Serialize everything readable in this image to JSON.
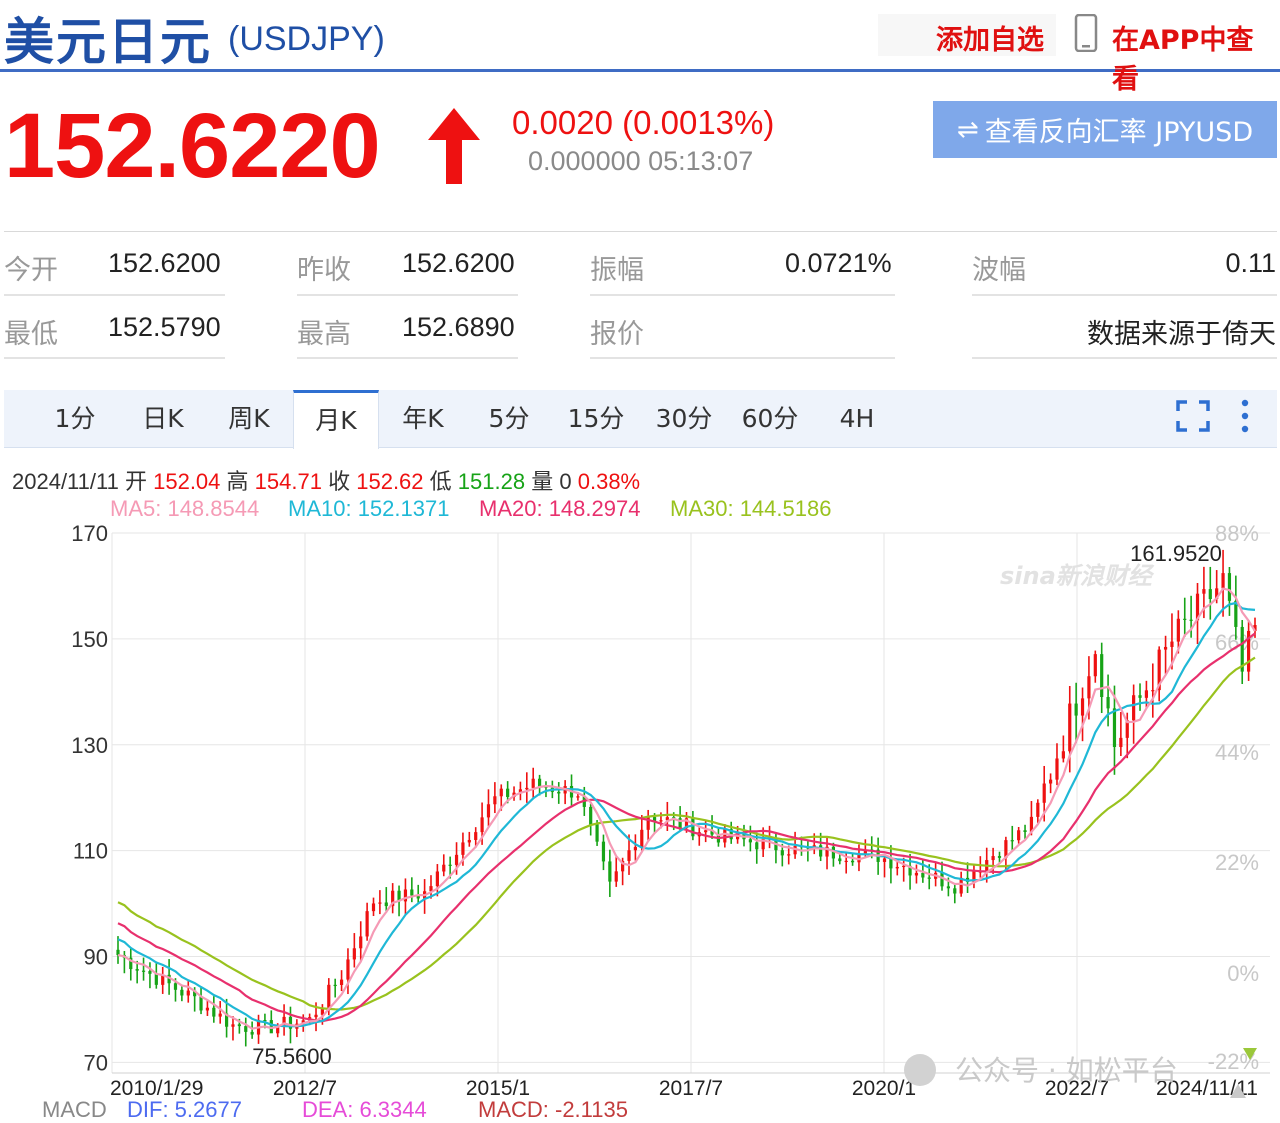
{
  "header": {
    "title_cn": "美元日元",
    "title_code": "(USDJPY)",
    "add_watch": "添加自选",
    "view_in_app": "在APP中查看"
  },
  "quote": {
    "price": "152.6220",
    "change": "0.0020 (0.0013%)",
    "sub": "0.000000 05:13:07",
    "reverse_button": "查看反向汇率 JPYUSD",
    "direction": "up"
  },
  "stats": {
    "open_label": "今开",
    "open": "152.6200",
    "prev_close_label": "昨收",
    "prev_close": "152.6200",
    "amplitude_label": "振幅",
    "amplitude": "0.0721%",
    "wave_label": "波幅",
    "wave": "0.11",
    "low_label": "最低",
    "low": "152.5790",
    "high_label": "最高",
    "high": "152.6890",
    "quote_label": "报价",
    "source": "数据来源于倚天"
  },
  "tabs": [
    "1分",
    "日K",
    "周K",
    "月K",
    "年K",
    "5分",
    "15分",
    "30分",
    "60分",
    "4H"
  ],
  "active_tab": "月K",
  "ohlc_line": {
    "date": "2024/11/11",
    "open_label": "开",
    "open": "152.04",
    "high_label": "高",
    "high": "154.71",
    "close_label": "收",
    "close": "152.62",
    "low_label": "低",
    "low": "151.28",
    "volume_label": "量",
    "volume": "0",
    "change_pct": "0.38%"
  },
  "ma": {
    "ma5": "MA5: 148.8544",
    "ma10": "MA10: 152.1371",
    "ma20": "MA20: 148.2974",
    "ma30": "MA30: 144.5186"
  },
  "macd": {
    "label": "MACD",
    "dif": "DIF: 5.2677",
    "dea": "DEA: 6.3344",
    "macd": "MACD: -2.1135"
  },
  "watermark": {
    "sina": "sina新浪财经",
    "wechat": "公众号 · 如松平台"
  },
  "colors": {
    "up": "#ee1111",
    "down": "#17a317",
    "ma5": "#f59ab5",
    "ma10": "#1fb8d6",
    "ma20": "#e8306d",
    "ma30": "#99c21e",
    "accent": "#3f6cc4"
  },
  "chart_data": {
    "type": "candlestick",
    "title": "",
    "y_ticks": [
      170,
      150,
      130,
      110,
      90,
      70
    ],
    "ylim": [
      68,
      170
    ],
    "pct_ticks": [
      "88%",
      "66%",
      "44%",
      "22%",
      "0%",
      "-22%"
    ],
    "x_ticks": [
      "2010/1/29",
      "2012/7",
      "2015/1",
      "2017/7",
      "2020/1",
      "2022/7",
      "2024/11/11"
    ],
    "annotations": {
      "max": "161.9520",
      "min": "75.5600"
    },
    "grid": true,
    "series_close": [
      {
        "x": "2010-01",
        "y": 90.3
      },
      {
        "x": "2010-07",
        "y": 86.0
      },
      {
        "x": "2011-01",
        "y": 82.0
      },
      {
        "x": "2011-07",
        "y": 77.0
      },
      {
        "x": "2011-12",
        "y": 76.5
      },
      {
        "x": "2012-07",
        "y": 78.0
      },
      {
        "x": "2012-12",
        "y": 86.5
      },
      {
        "x": "2013-05",
        "y": 100.5
      },
      {
        "x": "2014-01",
        "y": 102.0
      },
      {
        "x": "2014-12",
        "y": 119.8
      },
      {
        "x": "2015-06",
        "y": 122.5
      },
      {
        "x": "2016-01",
        "y": 121.0
      },
      {
        "x": "2016-06",
        "y": 103.0
      },
      {
        "x": "2016-12",
        "y": 116.8
      },
      {
        "x": "2017-12",
        "y": 112.5
      },
      {
        "x": "2018-12",
        "y": 110.0
      },
      {
        "x": "2019-12",
        "y": 109.0
      },
      {
        "x": "2020-12",
        "y": 103.5
      },
      {
        "x": "2021-12",
        "y": 115.0
      },
      {
        "x": "2022-10",
        "y": 148.5
      },
      {
        "x": "2023-01",
        "y": 130.0
      },
      {
        "x": "2023-10",
        "y": 149.5
      },
      {
        "x": "2024-06",
        "y": 161.0
      },
      {
        "x": "2024-09",
        "y": 143.5
      },
      {
        "x": "2024-11",
        "y": 152.6
      }
    ]
  }
}
